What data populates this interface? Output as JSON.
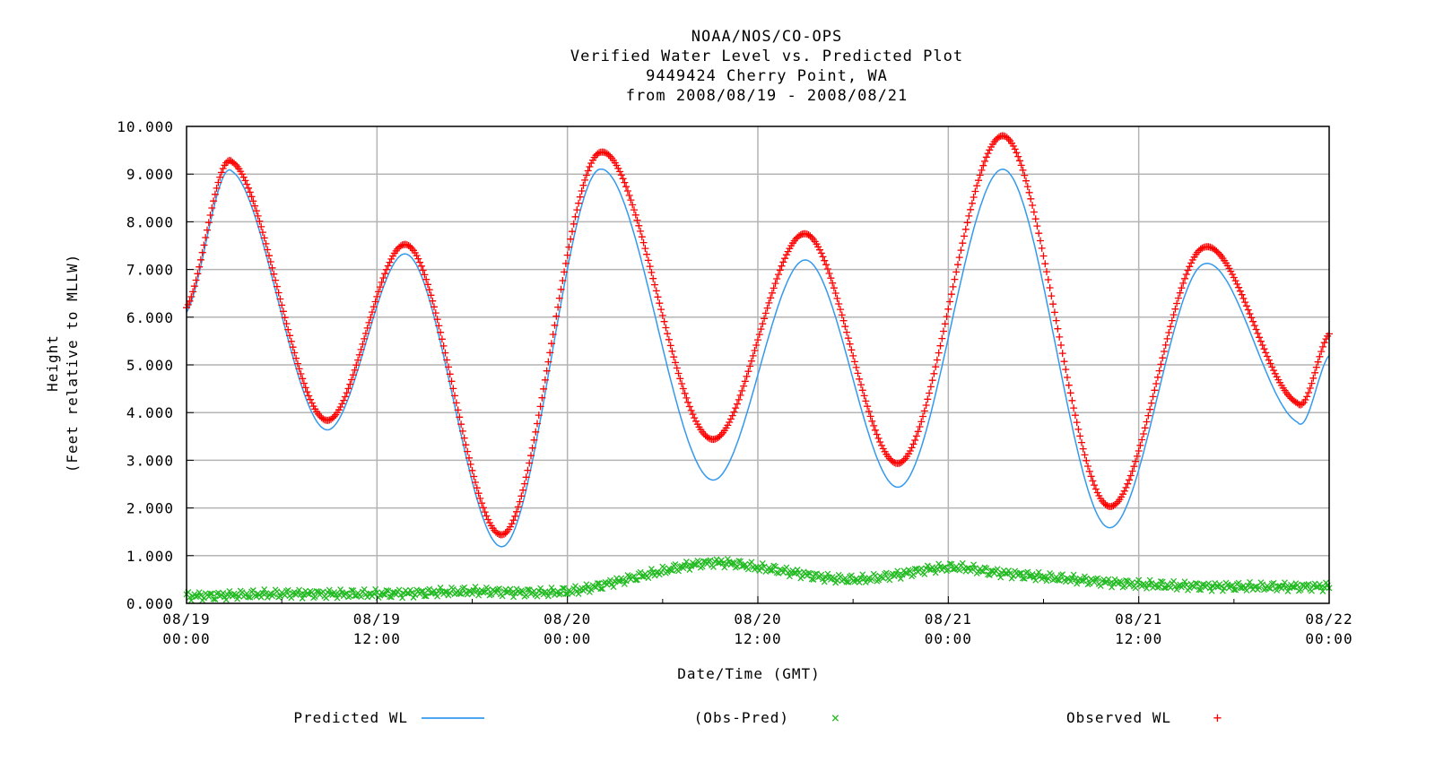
{
  "chart_data": {
    "type": "line",
    "title": [
      "NOAA/NOS/CO-OPS",
      "Verified  Water Level vs. Predicted Plot",
      "9449424 Cherry Point, WA",
      "from 2008/08/19 - 2008/08/21"
    ],
    "xlabel": "Date/Time (GMT)",
    "ylabel": [
      "Height",
      "(Feet relative to MLLW)"
    ],
    "x_unit": "hours since 08/19 00:00 GMT",
    "xlim": [
      0,
      72
    ],
    "ylim": [
      0,
      10
    ],
    "grid": true,
    "y_ticks": [
      "0.000",
      "1.000",
      "2.000",
      "3.000",
      "4.000",
      "5.000",
      "6.000",
      "7.000",
      "8.000",
      "9.000",
      "10.000"
    ],
    "x_ticks": [
      {
        "x": 0,
        "line1": "08/19",
        "line2": "00:00"
      },
      {
        "x": 12,
        "line1": "08/19",
        "line2": "12:00"
      },
      {
        "x": 24,
        "line1": "08/20",
        "line2": "00:00"
      },
      {
        "x": 36,
        "line1": "08/20",
        "line2": "12:00"
      },
      {
        "x": 48,
        "line1": "08/21",
        "line2": "00:00"
      },
      {
        "x": 60,
        "line1": "08/21",
        "line2": "12:00"
      },
      {
        "x": 72,
        "line1": "08/22",
        "line2": "00:00"
      }
    ],
    "series": [
      {
        "name": "Predicted WL",
        "marker": "line",
        "color": "#3399ee",
        "x": [
          0,
          2.9,
          8.7,
          14.0,
          20.0,
          26.0,
          33.0,
          39.0,
          45.0,
          51.5,
          58.0,
          64.0,
          70.0,
          72.0
        ],
        "y": [
          6.1,
          9.05,
          3.65,
          7.3,
          1.2,
          9.1,
          2.6,
          7.2,
          2.45,
          9.1,
          1.6,
          7.1,
          3.8,
          5.2
        ]
      },
      {
        "name": "Observed WL",
        "marker": "+",
        "color": "#ff0000",
        "x": [
          0,
          2.9,
          8.7,
          14.0,
          20.0,
          26.0,
          33.0,
          39.0,
          45.0,
          51.5,
          58.0,
          64.0,
          70.0,
          72.0
        ],
        "y": [
          6.2,
          9.25,
          3.85,
          7.5,
          1.45,
          9.45,
          3.45,
          7.75,
          2.95,
          9.8,
          2.05,
          7.45,
          4.2,
          5.65
        ]
      },
      {
        "name": "(Obs-Pred)",
        "marker": "x",
        "color": "#22bb22",
        "x": [
          0,
          6,
          12,
          18,
          24,
          29,
          33,
          36,
          42,
          48,
          51,
          54,
          60,
          66,
          72
        ],
        "y": [
          0.15,
          0.2,
          0.2,
          0.25,
          0.25,
          0.6,
          0.85,
          0.75,
          0.5,
          0.75,
          0.65,
          0.55,
          0.4,
          0.35,
          0.35
        ]
      }
    ],
    "legend": {
      "placement": "bottom",
      "items": [
        {
          "label": "Predicted WL",
          "symbol": "line",
          "color": "#3399ee"
        },
        {
          "label": "(Obs-Pred)",
          "symbol": "×",
          "color": "#22bb22"
        },
        {
          "label": "Observed WL",
          "symbol": "+",
          "color": "#ff0000"
        }
      ]
    }
  }
}
